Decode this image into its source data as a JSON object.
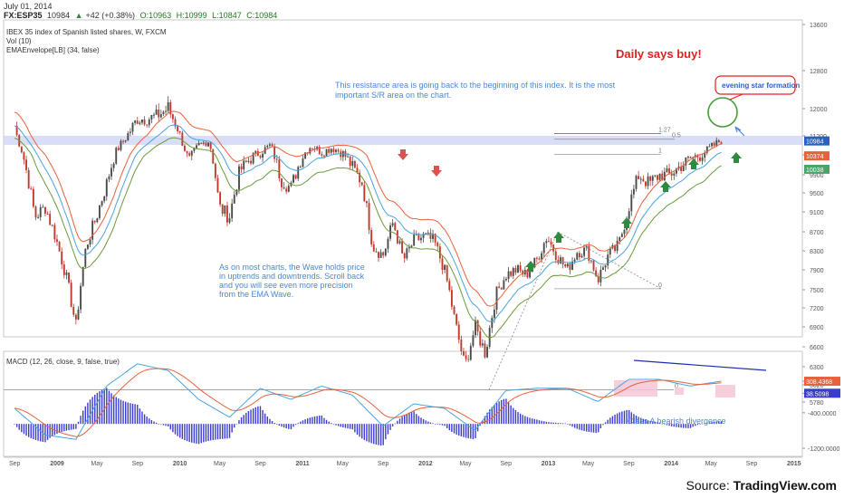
{
  "header": {
    "date": "July 01, 2014",
    "symbol": "FX:ESP35",
    "last": "10984",
    "change": "+42 (+0.38%)",
    "open": "O:10963",
    "high": "H:10999",
    "low": "L:10847",
    "close": "C:10984"
  },
  "source": {
    "prefix": "Source: ",
    "name": "TradingView.com"
  },
  "colors": {
    "up_candle": "#4a4a4a",
    "down_candle": "#c0392b",
    "ema_slow": "#e8613a",
    "ema_mid": "#4aa3df",
    "ema_fast": "#6a9a3c",
    "resistance_band": "#c9d3f2",
    "annotation_text": "#4a88d6",
    "buy_text": "#e02020",
    "up_arrow": "#2e8b3e",
    "down_arrow": "#d9534f",
    "macd_hist": "#3b3bd0",
    "macd_line": "#4aa3df",
    "signal_line": "#e8613a"
  },
  "chart_data": [
    {
      "type": "candlestick",
      "title": "IBEX 35 index of Spanish listed shares, W, FXCM",
      "indicators": [
        "Vol (10)",
        "EMAEnvelope[LB] (34, false)"
      ],
      "x_tick_labels": [
        "Sep",
        "2009",
        "May",
        "Sep",
        "2010",
        "May",
        "Sep",
        "2011",
        "May",
        "Sep",
        "2012",
        "May",
        "Sep",
        "2013",
        "May",
        "Sep",
        "2014",
        "May",
        "Sep",
        "2015"
      ],
      "y_tick_labels": [
        "13600",
        "12800",
        "12000",
        "11200",
        "10400",
        "9900",
        "9500",
        "9100",
        "8700",
        "8300",
        "7900",
        "7500",
        "7200",
        "6900",
        "6600",
        "6300",
        "6020",
        "5780"
      ],
      "ylim": [
        5600,
        14000
      ],
      "price_labels": [
        {
          "value": 10984,
          "color": "#2a5fc4"
        },
        {
          "value": 10374,
          "color": "#e8613a"
        },
        {
          "value": 10038,
          "color": "#4aa36a"
        }
      ],
      "close_path": [
        [
          "Sep 2008",
          11500
        ],
        [
          "Oct 2008",
          10200
        ],
        [
          "Nov 2008",
          9000
        ],
        [
          "Dec 2008",
          9200
        ],
        [
          "Jan 2009",
          8600
        ],
        [
          "Feb 2009",
          7800
        ],
        [
          "Mar 2009",
          6900
        ],
        [
          "Apr 2009",
          8400
        ],
        [
          "May 2009",
          9000
        ],
        [
          "Jun 2009",
          9700
        ],
        [
          "Jul 2009",
          10600
        ],
        [
          "Aug 2009",
          11200
        ],
        [
          "Sep 2009",
          11700
        ],
        [
          "Oct 2009",
          11700
        ],
        [
          "Nov 2009",
          11800
        ],
        [
          "Dec 2009",
          12000
        ],
        [
          "Jan 2010",
          11400
        ],
        [
          "Feb 2010",
          10200
        ],
        [
          "Mar 2010",
          10800
        ],
        [
          "Apr 2010",
          11000
        ],
        [
          "May 2010",
          9200
        ],
        [
          "Jun 2010",
          9000
        ],
        [
          "Jul 2010",
          10000
        ],
        [
          "Aug 2010",
          10300
        ],
        [
          "Sep 2010",
          10500
        ],
        [
          "Oct 2010",
          10800
        ],
        [
          "Nov 2010",
          9800
        ],
        [
          "Dec 2010",
          9600
        ],
        [
          "Jan 2011",
          10300
        ],
        [
          "Feb 2011",
          10800
        ],
        [
          "Mar 2011",
          10500
        ],
        [
          "Apr 2011",
          10700
        ],
        [
          "May 2011",
          10500
        ],
        [
          "Jun 2011",
          10100
        ],
        [
          "Jul 2011",
          9700
        ],
        [
          "Aug 2011",
          8400
        ],
        [
          "Sep 2011",
          8200
        ],
        [
          "Oct 2011",
          8900
        ],
        [
          "Nov 2011",
          8100
        ],
        [
          "Dec 2011",
          8500
        ],
        [
          "Jan 2012",
          8600
        ],
        [
          "Feb 2012",
          8500
        ],
        [
          "Mar 2012",
          7900
        ],
        [
          "Apr 2012",
          7000
        ],
        [
          "May 2012",
          6300
        ],
        [
          "Jun 2012",
          6900
        ],
        [
          "Jul 2012",
          6500
        ],
        [
          "Aug 2012",
          7400
        ],
        [
          "Sep 2012",
          7800
        ],
        [
          "Oct 2012",
          7900
        ],
        [
          "Nov 2012",
          7800
        ],
        [
          "Dec 2012",
          8100
        ],
        [
          "Jan 2013",
          8600
        ],
        [
          "Feb 2013",
          8200
        ],
        [
          "Mar 2013",
          7900
        ],
        [
          "Apr 2013",
          8300
        ],
        [
          "May 2013",
          8300
        ],
        [
          "Jun 2013",
          7700
        ],
        [
          "Jul 2013",
          8200
        ],
        [
          "Aug 2013",
          8400
        ],
        [
          "Sep 2013",
          9200
        ],
        [
          "Oct 2013",
          9900
        ],
        [
          "Nov 2013",
          9700
        ],
        [
          "Dec 2013",
          9900
        ],
        [
          "Jan 2014",
          9900
        ],
        [
          "Feb 2014",
          10100
        ],
        [
          "Mar 2014",
          10300
        ],
        [
          "Apr 2014",
          10400
        ],
        [
          "May 2014",
          10700
        ],
        [
          "Jun 2014",
          11000
        ]
      ],
      "levels": [
        {
          "label": "1.27",
          "value": 11270
        },
        {
          "label": "0.5",
          "value": 11060
        },
        {
          "label": "1",
          "value": 10420
        },
        {
          "label": "0",
          "value": 7520
        },
        {
          "label": "0",
          "value": 5950
        }
      ],
      "annotations": [
        "This resistance area is going back to the beginning of this index. It is the most important S/R area on the chart.",
        "As on most charts, the Wave holds price in uptrends and downtrends. Scroll back and you will see even more precision from the EMA Wave.",
        "Daily says buy!",
        "evening star formation"
      ]
    },
    {
      "type": "bar",
      "title": "MACD (12, 26, close, 9, false, true)",
      "y_tick_labels": [
        "308.4368",
        "38.5098",
        "-400.0000",
        "-1200.0000"
      ],
      "ylim": [
        -1300,
        900
      ],
      "price_labels": [
        {
          "value": 308.4368,
          "color": "#e8613a"
        },
        {
          "value": 38.5098,
          "color": "#3b3bd0"
        }
      ],
      "macd_path": [
        [
          "Sep 2008",
          -300
        ],
        [
          "Dec 2008",
          -900
        ],
        [
          "Mar 2009",
          -1000
        ],
        [
          "Jun 2009",
          200
        ],
        [
          "Sep 2009",
          700
        ],
        [
          "Dec 2009",
          550
        ],
        [
          "Mar 2010",
          -100
        ],
        [
          "Jun 2010",
          -500
        ],
        [
          "Sep 2010",
          150
        ],
        [
          "Dec 2010",
          -100
        ],
        [
          "Mar 2011",
          200
        ],
        [
          "Jun 2011",
          0
        ],
        [
          "Sep 2011",
          -700
        ],
        [
          "Dec 2011",
          -200
        ],
        [
          "Mar 2012",
          -300
        ],
        [
          "Jun 2012",
          -800
        ],
        [
          "Sep 2012",
          100
        ],
        [
          "Dec 2012",
          150
        ],
        [
          "Mar 2013",
          150
        ],
        [
          "Jun 2013",
          -150
        ],
        [
          "Sep 2013",
          350
        ],
        [
          "Dec 2013",
          350
        ],
        [
          "Mar 2014",
          200
        ],
        [
          "Jun 2014",
          308
        ]
      ],
      "annotations": [
        "Class A bearish divergence"
      ]
    }
  ]
}
